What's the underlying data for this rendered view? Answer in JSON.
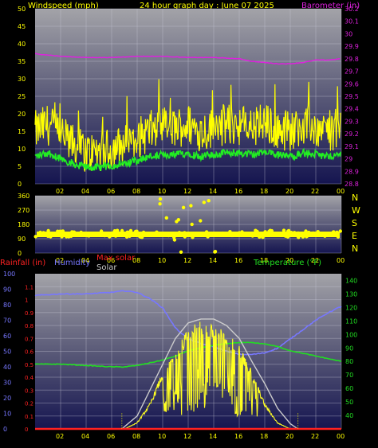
{
  "header": {
    "left_title": "Windspeed (mph)",
    "center_title": "24 hour graph day : June 07 2025",
    "right_title": "Barometer (in)"
  },
  "colors": {
    "windspeed": "#ffff00",
    "gust": "#ffff00",
    "wind_avg": "#22ee22",
    "barometer": "#dd22dd",
    "direction": "#ffff00",
    "humidity": "#7777ff",
    "temperature": "#22dd22",
    "solar": "#ffff22",
    "max_solar": "#cccccc",
    "rainfall": "#ff2222",
    "panel_top": "#a0a0a0",
    "panel_bottom": "#1a1a5a"
  },
  "chart_data": [
    {
      "type": "line",
      "title": "24 hour graph day : June 07 2025",
      "xlabel": "",
      "x_ticks": [
        "02",
        "04",
        "06",
        "08",
        "10",
        "12",
        "14",
        "16",
        "18",
        "20",
        "22",
        "00"
      ],
      "left_axis": {
        "label": "Windspeed (mph)",
        "ticks": [
          0,
          5,
          10,
          15,
          20,
          25,
          30,
          35,
          40,
          45,
          50
        ],
        "ylim": [
          0,
          50
        ]
      },
      "right_axis": {
        "label": "Barometer (in)",
        "ticks": [
          "28.8",
          "28.9",
          "29",
          "29.1",
          "29.2",
          "29.3",
          "29.4",
          "29.5",
          "29.6",
          "29.7",
          "29.8",
          "29.9",
          "30",
          "30.1",
          "30.2"
        ],
        "ylim": [
          28.8,
          30.2
        ]
      },
      "series": [
        {
          "name": "Windspeed (mph)",
          "x": [
            0,
            1,
            2,
            3,
            4,
            5,
            6,
            7,
            8,
            9,
            10,
            11,
            12,
            13,
            14,
            15,
            16,
            17,
            18,
            19,
            20,
            21,
            22,
            23,
            24
          ],
          "values": [
            15,
            17,
            14,
            11,
            9,
            9,
            10,
            11,
            13,
            15,
            16,
            16,
            17,
            15,
            16,
            17,
            17,
            16,
            17,
            16,
            15,
            17,
            16,
            15,
            16
          ]
        },
        {
          "name": "Barometer (in)",
          "x": [
            0,
            2,
            4,
            6,
            8,
            10,
            12,
            14,
            16,
            17,
            18,
            19,
            20,
            21,
            22,
            23,
            24
          ],
          "values": [
            29.84,
            29.82,
            29.81,
            29.81,
            29.82,
            29.82,
            29.81,
            29.81,
            29.8,
            29.78,
            29.77,
            29.76,
            29.76,
            29.77,
            29.79,
            29.79,
            29.8
          ]
        }
      ]
    },
    {
      "type": "scatter",
      "title": "",
      "x_ticks": [
        "02",
        "04",
        "06",
        "08",
        "10",
        "12",
        "14",
        "16",
        "18",
        "20",
        "22",
        "00"
      ],
      "left_axis": {
        "ticks": [
          0,
          90,
          180,
          270,
          360
        ],
        "ylim": [
          0,
          360
        ]
      },
      "right_labels": [
        "N",
        "W",
        "S",
        "E",
        "N"
      ],
      "series": [
        {
          "name": "Wind direction",
          "dominant_value": 120,
          "spread_range": [
            100,
            150
          ],
          "scatter_hours": [
            9,
            15
          ],
          "scatter_range": [
            0,
            360
          ]
        }
      ]
    },
    {
      "type": "line",
      "title": "",
      "x_ticks": [
        "02",
        "04",
        "06",
        "08",
        "10",
        "12",
        "14",
        "16",
        "18",
        "20",
        "22",
        "00"
      ],
      "legend": [
        "Rainfall (in)",
        "Humidity",
        "Max solar",
        "Solar",
        "Temperature (°F)"
      ],
      "humidity_axis": {
        "ticks": [
          0,
          10,
          20,
          30,
          40,
          50,
          60,
          70,
          80,
          90,
          100
        ],
        "ylim": [
          0,
          100
        ]
      },
      "rain_axis": {
        "ticks": [
          "0",
          "0.1",
          "0.2",
          "0.3",
          "0.4",
          "0.5",
          "0.6",
          "0.7",
          "0.8",
          "0.9",
          "1",
          "1.1"
        ],
        "ylim": [
          0,
          1.2
        ]
      },
      "temp_axis": {
        "ticks": [
          40,
          50,
          60,
          70,
          80,
          90,
          100,
          110,
          120,
          130,
          140
        ],
        "ylim": [
          30,
          145
        ]
      },
      "series": [
        {
          "name": "Humidity",
          "x": [
            0,
            2,
            4,
            6,
            7,
            8,
            9,
            10,
            11,
            12,
            13,
            14,
            15,
            16,
            17,
            18,
            19,
            20,
            21,
            22,
            23,
            24
          ],
          "values": [
            86,
            87,
            87,
            88,
            89,
            88,
            84,
            78,
            65,
            58,
            55,
            53,
            50,
            48,
            48,
            49,
            52,
            58,
            64,
            70,
            75,
            79
          ]
        },
        {
          "name": "Temperature (°F)",
          "x": [
            0,
            2,
            4,
            6,
            7,
            8,
            9,
            10,
            11,
            12,
            13,
            14,
            15,
            16,
            17,
            18,
            19,
            20,
            21,
            22,
            23,
            24
          ],
          "values": [
            78,
            78,
            77,
            76,
            76,
            77,
            79,
            81,
            84,
            88,
            90,
            92,
            93,
            94,
            94,
            93,
            91,
            88,
            86,
            84,
            82,
            80
          ]
        },
        {
          "name": "Max solar",
          "x": [
            6.8,
            8,
            9,
            10,
            11,
            12,
            13,
            14,
            15,
            16,
            17,
            18,
            19,
            20,
            20.6
          ],
          "values": [
            0,
            0.1,
            0.3,
            0.5,
            0.7,
            0.82,
            0.85,
            0.85,
            0.8,
            0.7,
            0.52,
            0.35,
            0.16,
            0.04,
            0
          ]
        },
        {
          "name": "Solar",
          "x": [
            7,
            8,
            9,
            10,
            11,
            12,
            13,
            14,
            15,
            16,
            17,
            18,
            19,
            20
          ],
          "values": [
            0,
            0.05,
            0.2,
            0.45,
            0.6,
            0.78,
            0.84,
            0.8,
            0.75,
            0.65,
            0.45,
            0.2,
            0.05,
            0
          ]
        },
        {
          "name": "Rainfall (in)",
          "x": [
            0,
            24
          ],
          "values": [
            0,
            0
          ]
        }
      ]
    }
  ]
}
